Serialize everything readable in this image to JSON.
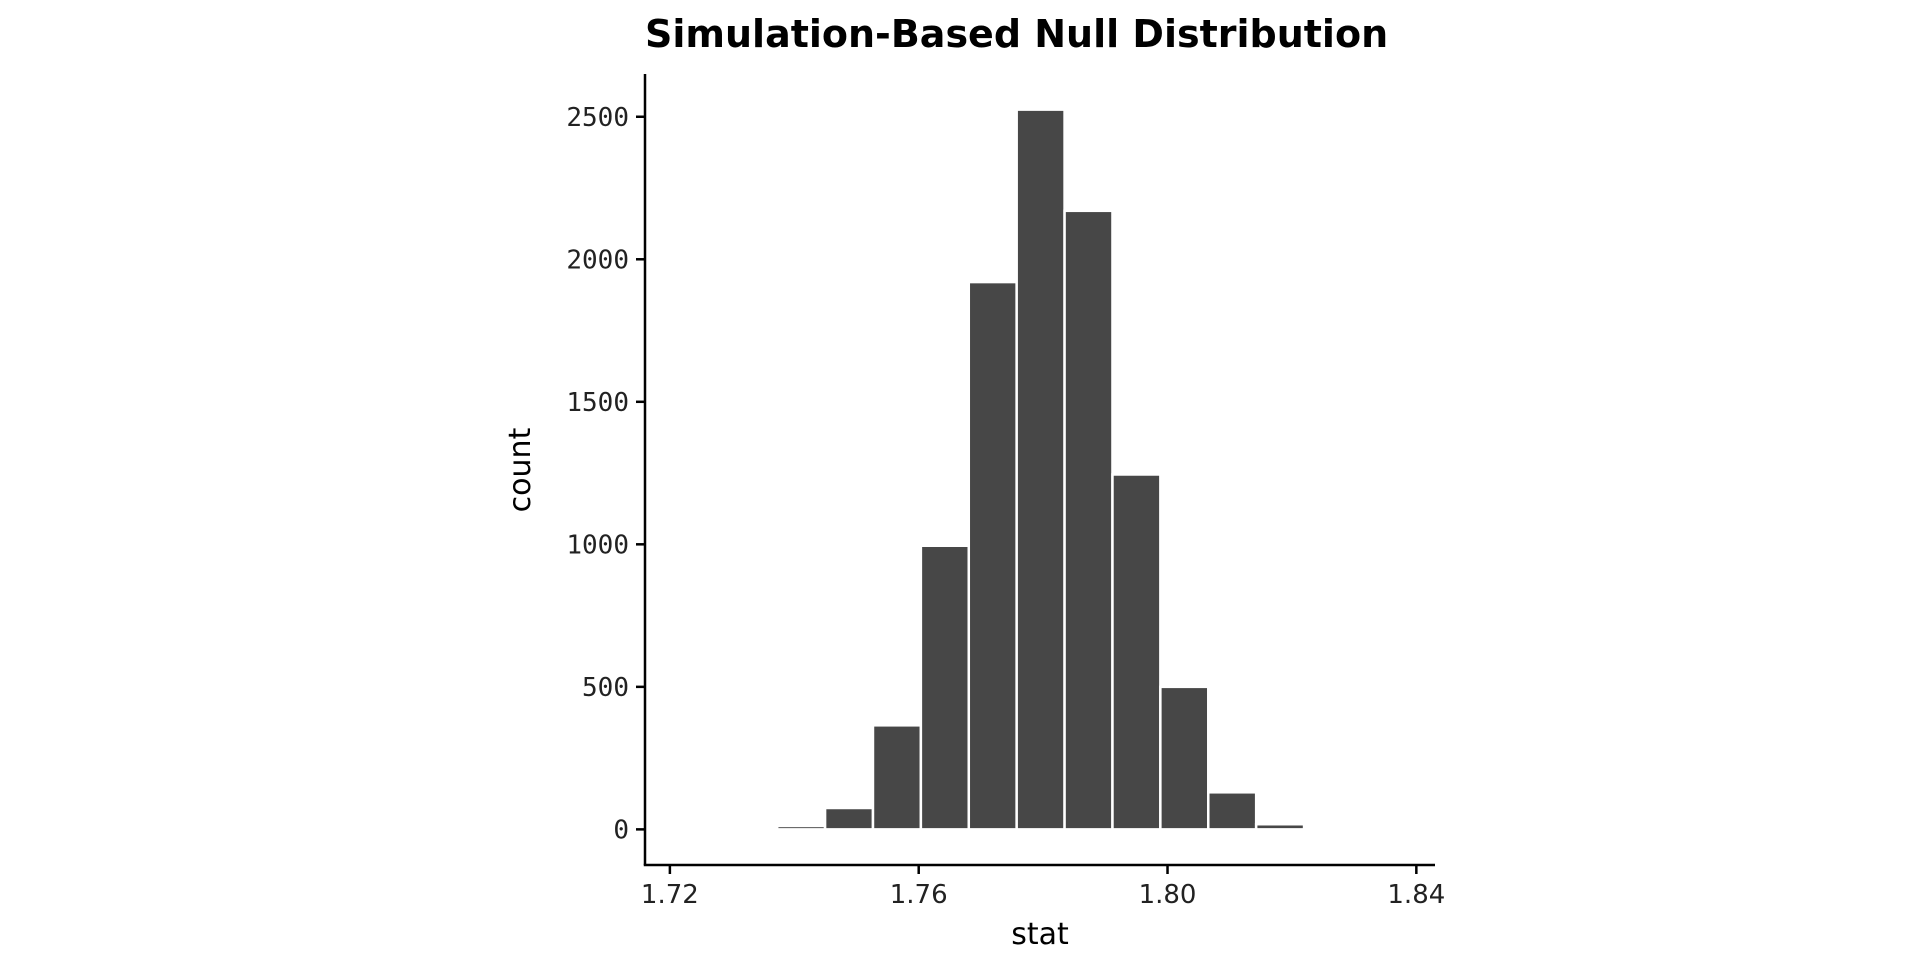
{
  "chart_data": {
    "type": "bar",
    "title": "Simulation-Based Null Distribution",
    "xlabel": "stat",
    "ylabel": "count",
    "xlim": [
      1.716,
      1.843
    ],
    "ylim": [
      -125,
      2650
    ],
    "x_ticks": [
      1.72,
      1.76,
      1.8,
      1.84
    ],
    "x_tick_labels": [
      "1.72",
      "1.76",
      "1.80",
      "1.84"
    ],
    "y_ticks": [
      0,
      500,
      1000,
      1500,
      2000,
      2500
    ],
    "y_tick_labels": [
      "0",
      "500",
      "1000",
      "1500",
      "2000",
      "2500"
    ],
    "bin_width": 0.0077,
    "bins": [
      {
        "x": 1.7411,
        "count": 12
      },
      {
        "x": 1.7488,
        "count": 75
      },
      {
        "x": 1.7565,
        "count": 365
      },
      {
        "x": 1.7642,
        "count": 995
      },
      {
        "x": 1.7719,
        "count": 1920
      },
      {
        "x": 1.7796,
        "count": 2525
      },
      {
        "x": 1.7873,
        "count": 2170
      },
      {
        "x": 1.795,
        "count": 1245
      },
      {
        "x": 1.8027,
        "count": 500
      },
      {
        "x": 1.8104,
        "count": 130
      },
      {
        "x": 1.8181,
        "count": 18
      }
    ],
    "bar_color": "#474747",
    "bar_outline": "#ffffff",
    "grid": false,
    "legend": "none"
  }
}
